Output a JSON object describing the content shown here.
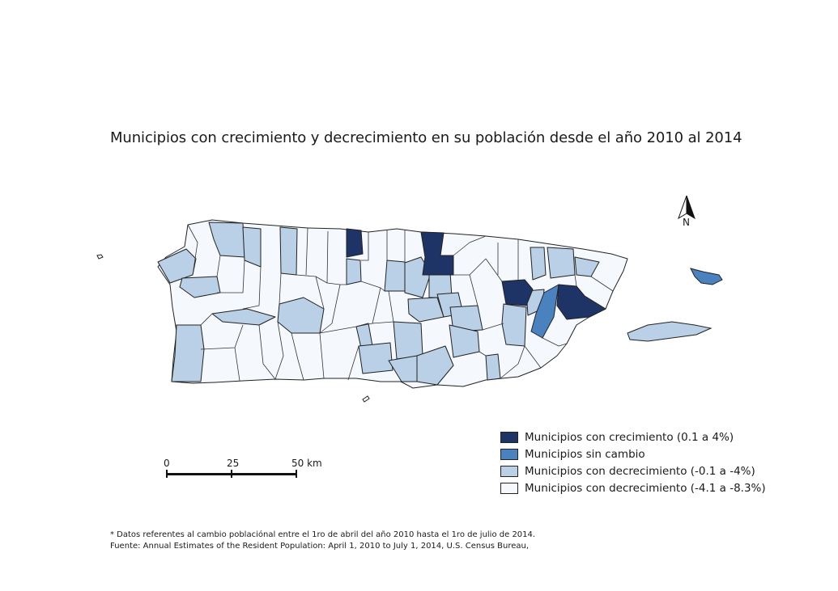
{
  "title": "Municipios con crecimiento y decrecimiento en su población desde el año 2010 al 2014",
  "north_arrow": {
    "label": "N"
  },
  "legend": {
    "items": [
      {
        "label": "Municipios con crecimiento (0.1 a 4%)",
        "color": "#1e3366"
      },
      {
        "label": "Municipios sin cambio",
        "color": "#4a82c0"
      },
      {
        "label": "Municipios con decrecimiento (-0.1 a -4%)",
        "color": "#b9d0e6"
      },
      {
        "label": "Municipios con decrecimiento (-4.1 a -8.3%)",
        "color": "#f5f9fd"
      }
    ]
  },
  "scale_bar": {
    "labels": [
      "0",
      "25",
      "50 km"
    ]
  },
  "notes": {
    "line1": "* Datos referentes al cambio poblaciónal entre el 1ro de abril del año 2010 hasta el 1ro de julio de 2014.",
    "line2": "Fuente: Annual Estimates of the Resident Population: April 1, 2010 to July 1, 2014, U.S. Census Bureau,"
  },
  "colors": {
    "border": "#222222",
    "background": "#ffffff"
  }
}
